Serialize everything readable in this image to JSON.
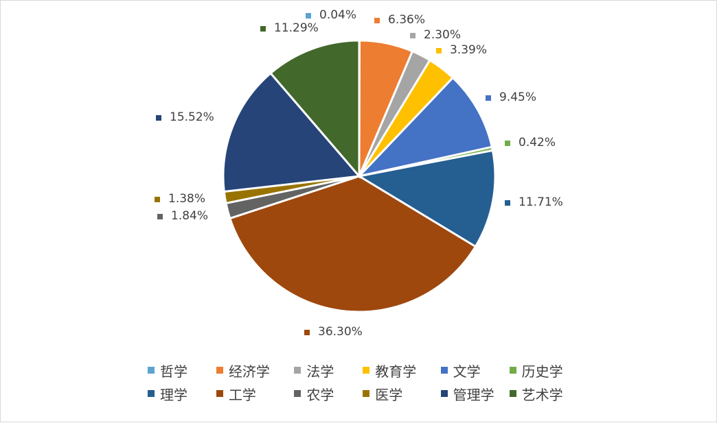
{
  "chart_data": {
    "type": "pie",
    "title": "",
    "legend_position": "bottom",
    "slices": [
      {
        "name": "哲学",
        "value": 0.04,
        "label": "0.04%",
        "color": "#5ba3d0"
      },
      {
        "name": "经济学",
        "value": 6.36,
        "label": "6.36%",
        "color": "#ed7d31"
      },
      {
        "name": "法学",
        "value": 2.3,
        "label": "2.30%",
        "color": "#a5a5a5"
      },
      {
        "name": "教育学",
        "value": 3.39,
        "label": "3.39%",
        "color": "#ffc000"
      },
      {
        "name": "文学",
        "value": 9.45,
        "label": "9.45%",
        "color": "#4472c4"
      },
      {
        "name": "历史学",
        "value": 0.42,
        "label": "0.42%",
        "color": "#70ad47"
      },
      {
        "name": "理学",
        "value": 11.71,
        "label": "11.71%",
        "color": "#255e91"
      },
      {
        "name": "工学",
        "value": 36.3,
        "label": "36.30%",
        "color": "#9e480e"
      },
      {
        "name": "农学",
        "value": 1.84,
        "label": "1.84%",
        "color": "#636363"
      },
      {
        "name": "医学",
        "value": 1.38,
        "label": "1.38%",
        "color": "#997300"
      },
      {
        "name": "管理学",
        "value": 15.52,
        "label": "15.52%",
        "color": "#264478"
      },
      {
        "name": "艺术学",
        "value": 11.29,
        "label": "11.29%",
        "color": "#43682b"
      }
    ]
  }
}
